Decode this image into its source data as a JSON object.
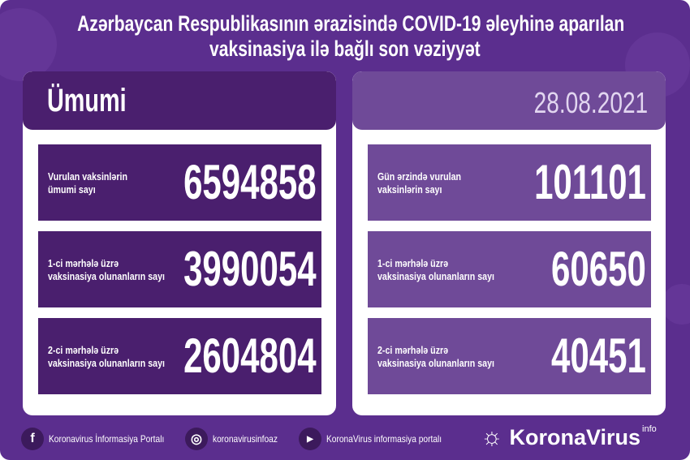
{
  "title": {
    "line1": "Azərbaycan Respublikasının ərazisində COVID-19 əleyhinə aparılan",
    "line2": "vaksinasiya ilə bağlı son vəziyyət"
  },
  "left": {
    "header": "Ümumi",
    "rows": [
      {
        "label1": "Vurulan vaksinlərin",
        "label2": "ümumi sayı",
        "value": "6594858"
      },
      {
        "label1": "1-ci mərhələ üzrə",
        "label2": "vaksinasiya olunanların sayı",
        "value": "3990054"
      },
      {
        "label1": "2-ci mərhələ üzrə",
        "label2": "vaksinasiya olunanların sayı",
        "value": "2604804"
      }
    ]
  },
  "right": {
    "date": "28.08.2021",
    "rows": [
      {
        "label1": "Gün ərzində vurulan",
        "label2": "vaksinlərin sayı",
        "value": "101101"
      },
      {
        "label1": "1-ci mərhələ üzrə",
        "label2": "vaksinasiya olunanların sayı",
        "value": "60650"
      },
      {
        "label1": "2-ci mərhələ üzrə",
        "label2": "vaksinasiya olunanların sayı",
        "value": "40451"
      }
    ]
  },
  "footer": {
    "facebook": "Koronavirus İnformasiya Portalı",
    "instagram": "koronavirusinfoaz",
    "youtube": "KoronaVirus informasiya portalı",
    "logo": "KoronaVirus",
    "logo_sup": "info"
  },
  "colors": {
    "background": "#5b2e8e",
    "left_panel": "#4a1f6e",
    "right_panel": "#6f4a98"
  }
}
